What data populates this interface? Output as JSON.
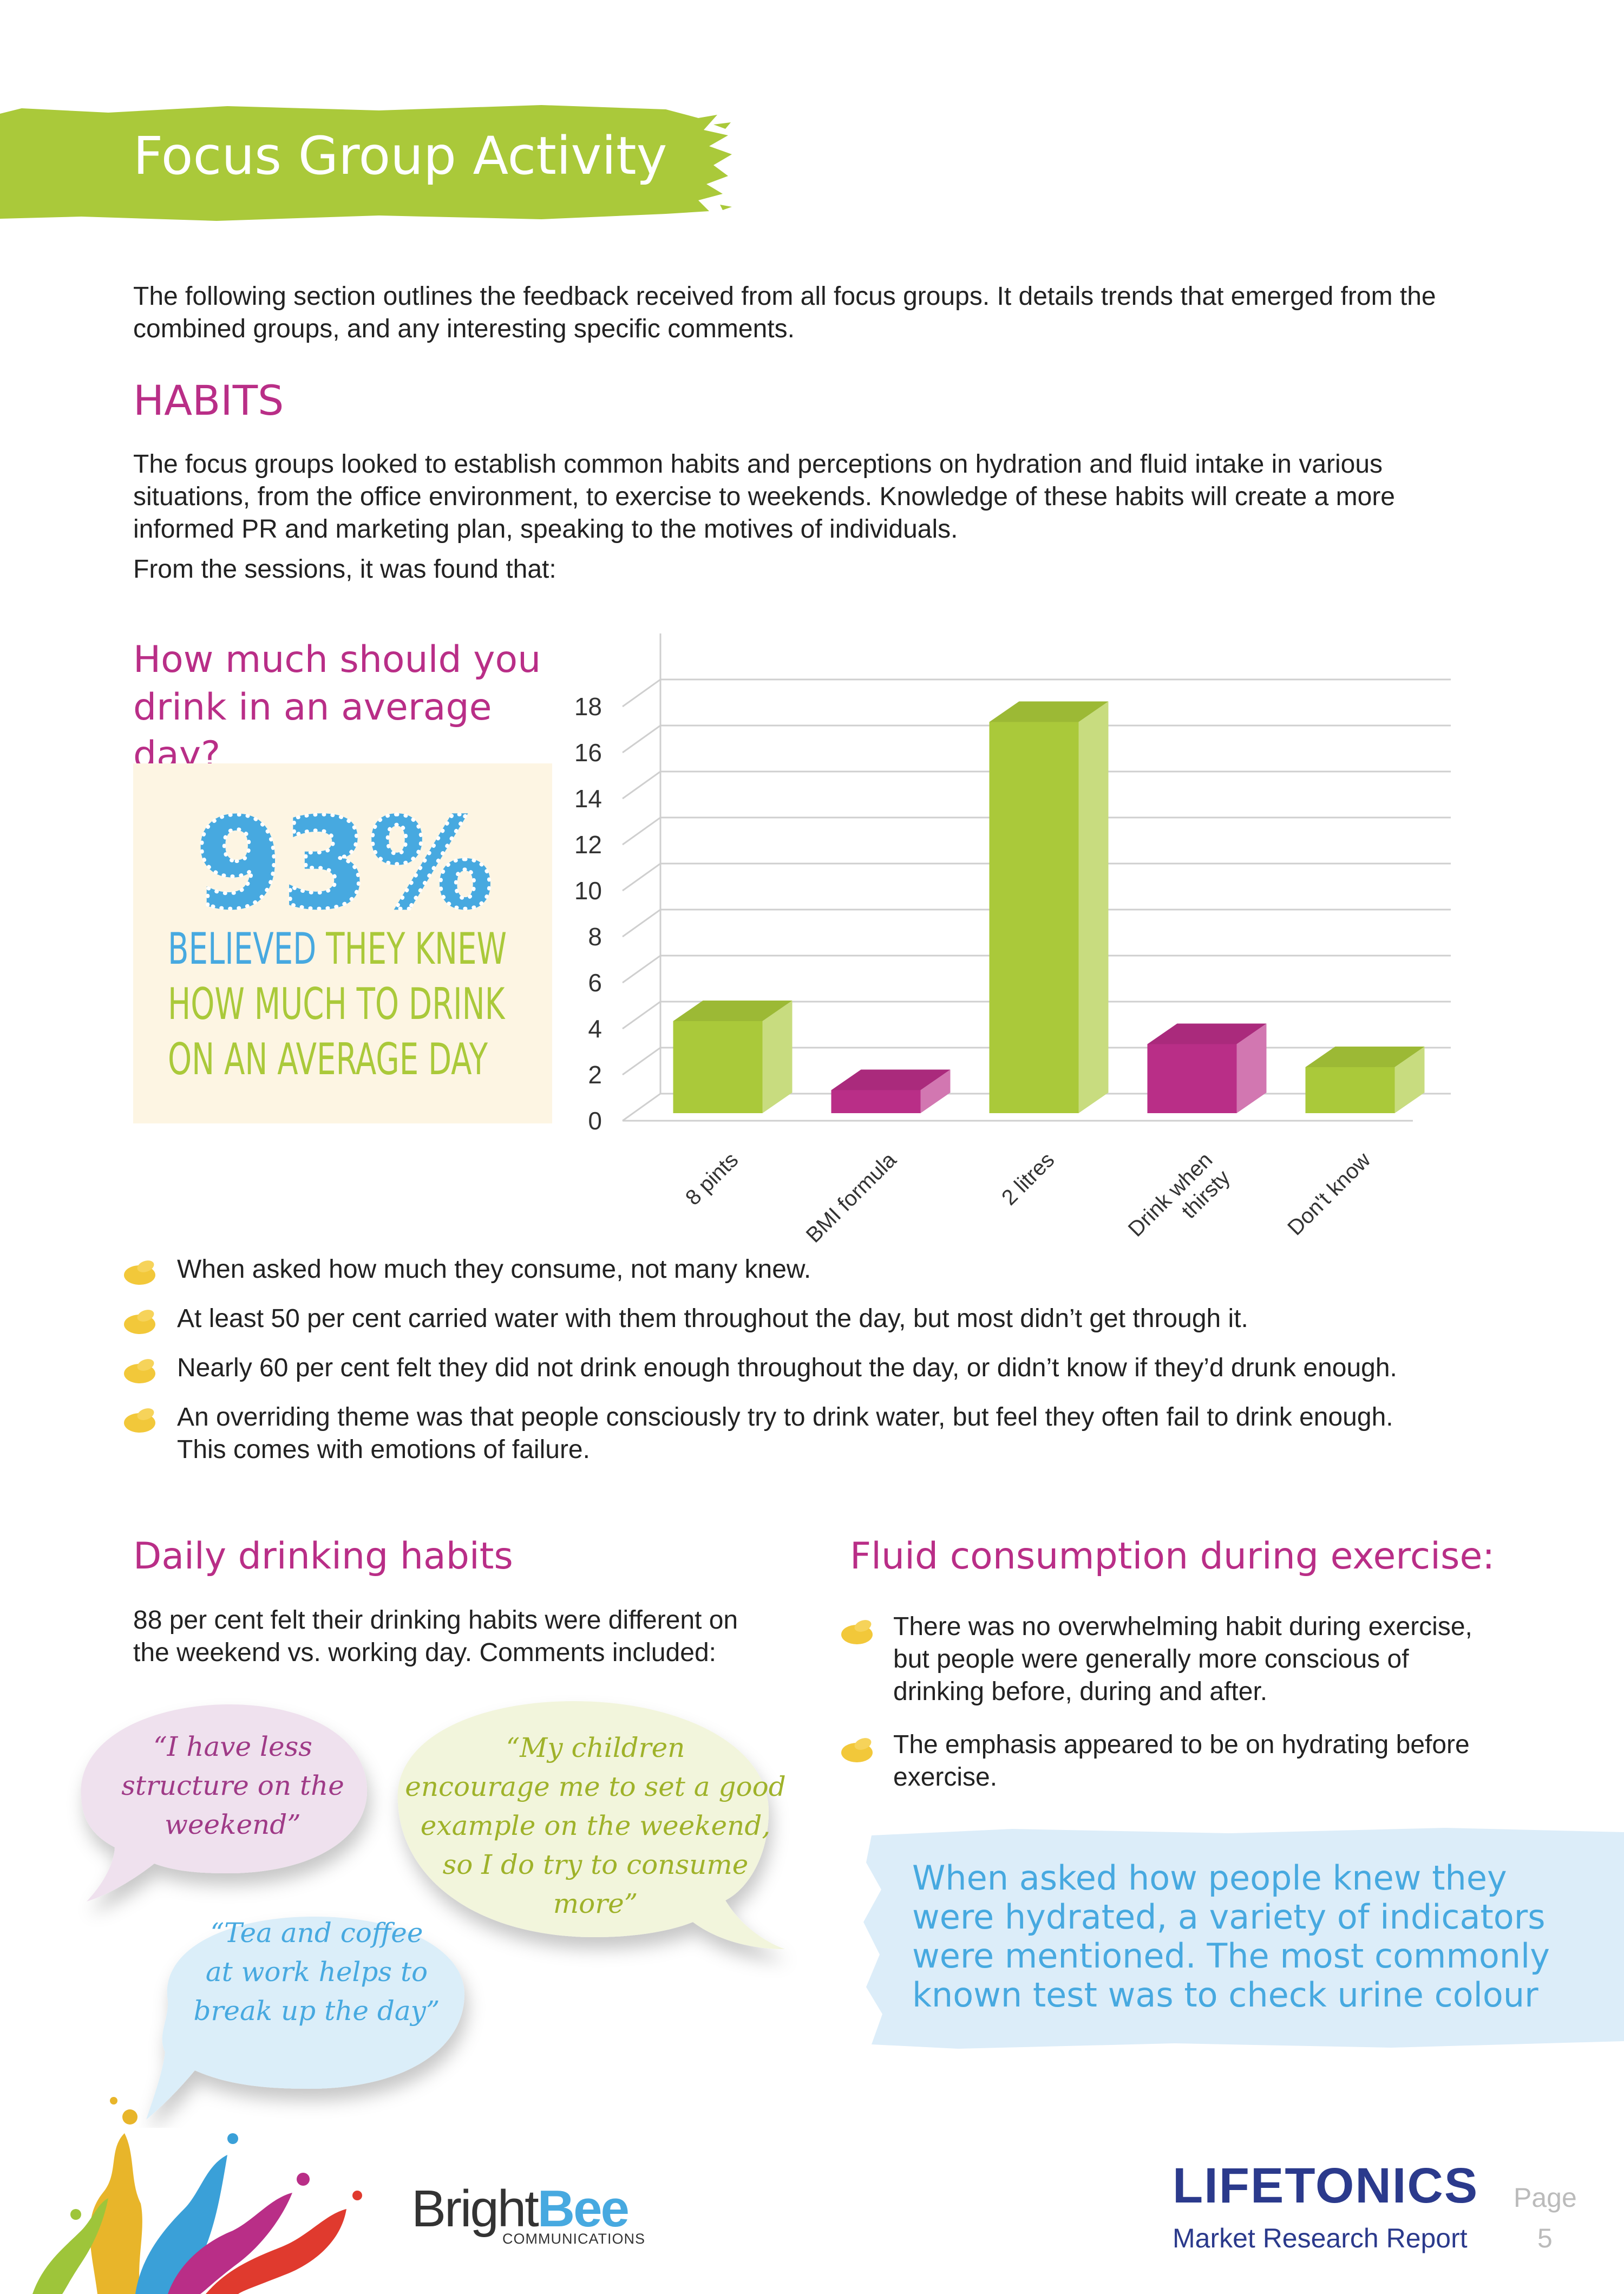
{
  "header": {
    "title": "Focus Group Activity"
  },
  "intro": "The following section outlines the feedback received from all focus groups. It details trends that emerged from the combined groups, and any interesting specific comments.",
  "habits": {
    "heading": "HABITS",
    "para1": "The focus groups looked to establish common habits and perceptions on hydration and fluid intake in various situations, from the office environment, to exercise to weekends. Knowledge of these habits will create a more informed PR and marketing plan, speaking to the motives of individuals.",
    "para2": "From the sessions, it was found that:"
  },
  "question": {
    "line1": "How much should you",
    "line2": "drink in an average day?"
  },
  "stat": {
    "percent": "93%",
    "word1": "BELIEVED",
    "word2": " THEY KNEW",
    "line2": "HOW MUCH TO DRINK",
    "line3": "ON AN AVERAGE DAY"
  },
  "chart_data": {
    "type": "bar",
    "categories": [
      "8 pints",
      "BMI formula",
      "2 litres",
      "Drink when thirsty",
      "Don't know"
    ],
    "values": [
      4,
      1,
      17,
      3,
      2
    ],
    "colors": [
      "#aac93a",
      "#b92e87",
      "#aac93a",
      "#b92e87",
      "#aac93a"
    ],
    "yticks": [
      "0",
      "2",
      "4",
      "6",
      "8",
      "10",
      "12",
      "14",
      "16",
      "18"
    ],
    "ylim": [
      0,
      18
    ],
    "grid": true
  },
  "bullets": [
    "When asked how much they consume, not many knew.",
    "At least 50 per cent carried water with them throughout the day, but most didn’t get through it.",
    "Nearly 60 per cent felt they did not drink enough throughout the day, or didn’t know if they’d drunk enough.",
    "An overriding theme was that people consciously try to drink water, but feel they often fail to drink enough.",
    "This comes with emotions of failure."
  ],
  "daily": {
    "heading": "Daily drinking habits",
    "line1": "88 per cent felt their drinking habits were different on",
    "line2": "the weekend vs. working day. Comments included:"
  },
  "quotes": {
    "q1": [
      "“I have less",
      "structure on the",
      "weekend”"
    ],
    "q2": [
      "“My children",
      "encourage me to set a good",
      "example on the weekend,",
      "so I do try to consume",
      "more”"
    ],
    "q3": [
      "“Tea and coffee",
      "at work helps to",
      "break up the day”"
    ]
  },
  "exercise": {
    "heading": "Fluid consumption during exercise:",
    "bullets": [
      [
        "There was no overwhelming habit during exercise,",
        "but people were generally more conscious of",
        "drinking before, during and after."
      ],
      [
        "The emphasis appeared to be on hydrating before",
        "exercise."
      ]
    ]
  },
  "callout": [
    "When asked how people knew they",
    "were hydrated, a variety of indicators",
    "were mentioned. The most commonly",
    "known test was to check urine colour"
  ],
  "footer": {
    "brand1": "Bright",
    "brand2": "Bee",
    "brand_sub": "COMMUNICATIONS",
    "client": "LIFETONICS",
    "report": "Market Research Report",
    "page_label": "Page",
    "page_number": "5"
  },
  "colors": {
    "green": "#aac93a",
    "pink": "#b92e87",
    "blue": "#47a9e0",
    "navy": "#2b3a8c",
    "bee": "#f2c83a"
  }
}
